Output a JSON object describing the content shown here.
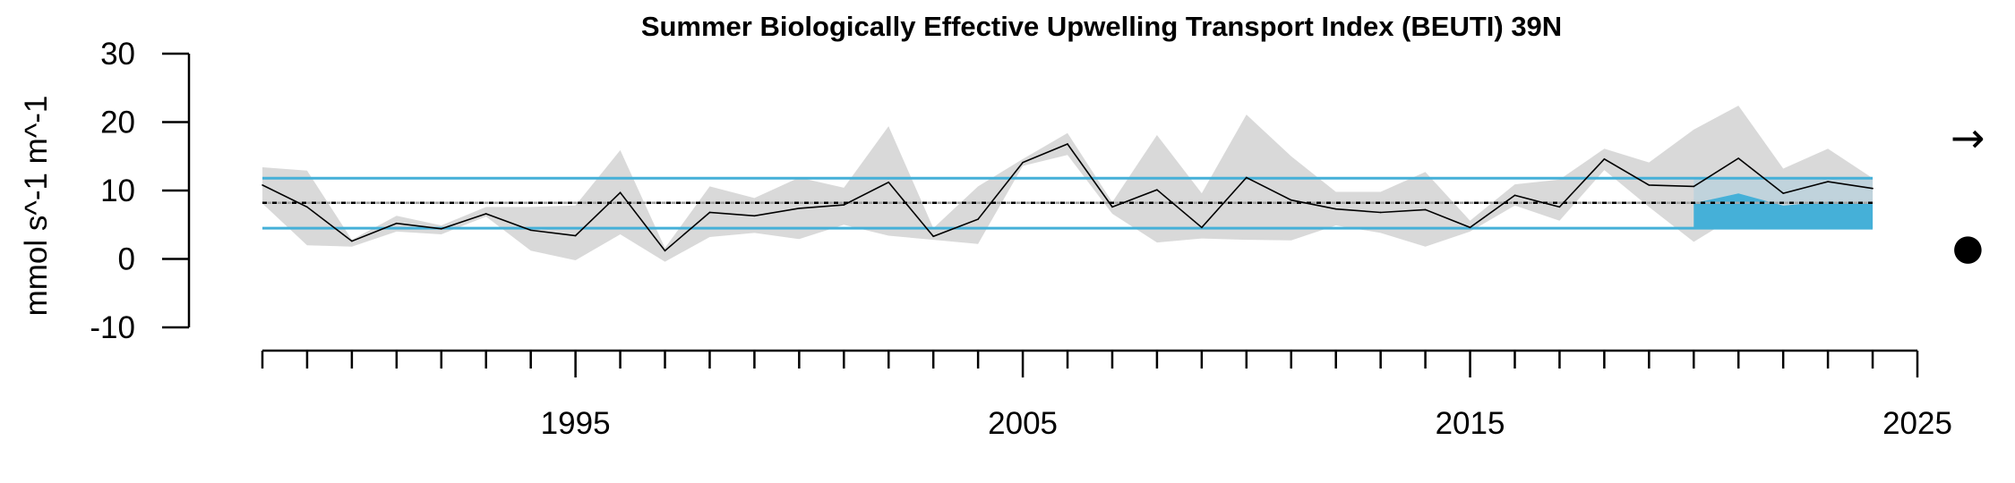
{
  "chart_data": {
    "type": "line",
    "title": "Summer Biologically Effective Upwelling Transport Index (BEUTI) 39N",
    "xlabel": "",
    "ylabel": "mmol s^-1 m^-1",
    "xlim": [
      1988,
      2025
    ],
    "ylim": [
      -10,
      30
    ],
    "x_major_ticks": [
      1995,
      2005,
      2015,
      2025
    ],
    "y_ticks": [
      -10,
      0,
      10,
      20,
      30
    ],
    "grid": false,
    "legend": "none",
    "x": [
      1988,
      1989,
      1990,
      1991,
      1992,
      1993,
      1994,
      1995,
      1996,
      1997,
      1998,
      1999,
      2000,
      2001,
      2002,
      2003,
      2004,
      2005,
      2006,
      2007,
      2008,
      2009,
      2010,
      2011,
      2012,
      2013,
      2014,
      2015,
      2016,
      2017,
      2018,
      2019,
      2020,
      2021,
      2022,
      2023,
      2024
    ],
    "series": [
      {
        "values": [
          10.8,
          7.6,
          2.6,
          5.2,
          4.4,
          6.6,
          4.2,
          3.4,
          9.7,
          1.2,
          6.8,
          6.3,
          7.4,
          7.9,
          11.2,
          3.3,
          5.8,
          14.1,
          16.8,
          7.6,
          10.1,
          4.6,
          11.9,
          8.6,
          7.3,
          6.8,
          7.2,
          4.6,
          9.3,
          7.6,
          14.6,
          10.8,
          10.6,
          14.7,
          9.6,
          11.3,
          10.3
        ]
      }
    ],
    "error_band": {
      "upper": [
        13.4,
        12.9,
        2.8,
        6.3,
        4.9,
        7.6,
        7.6,
        7.8,
        15.9,
        1.6,
        10.6,
        8.9,
        11.9,
        10.4,
        19.4,
        4.5,
        10.6,
        14.6,
        18.4,
        8.3,
        18.1,
        9.6,
        21.1,
        15.0,
        9.8,
        9.8,
        12.7,
        5.6,
        10.9,
        11.6,
        16.1,
        14.1,
        18.9,
        22.4,
        13.2,
        16.1,
        11.8
      ],
      "lower": [
        8.1,
        2.0,
        1.8,
        4.0,
        3.6,
        6.2,
        1.2,
        -0.2,
        3.6,
        -0.4,
        3.2,
        3.8,
        2.9,
        5.0,
        3.4,
        2.8,
        2.2,
        13.6,
        15.2,
        6.6,
        2.4,
        3.0,
        2.8,
        2.7,
        4.9,
        3.8,
        1.8,
        4.0,
        7.8,
        5.6,
        13.0,
        7.6,
        2.5,
        6.5,
        6.1,
        7.6,
        8.5
      ]
    },
    "mean": 8.2,
    "mean_plus_1sd": 11.8,
    "mean_minus_1sd": 4.5,
    "recent_period": [
      2020,
      2024
    ],
    "trend_symbol": "→",
    "mean_symbol": "●",
    "colors": {
      "line": "#000000",
      "band": "#d9d9d9",
      "sd_lines": "#45b0d8",
      "recent_box": "#bcd1db",
      "recent_fill": "#45b0d8",
      "mean_line_black": "#000000",
      "mean_line_grey": "#a6a6a6"
    }
  }
}
